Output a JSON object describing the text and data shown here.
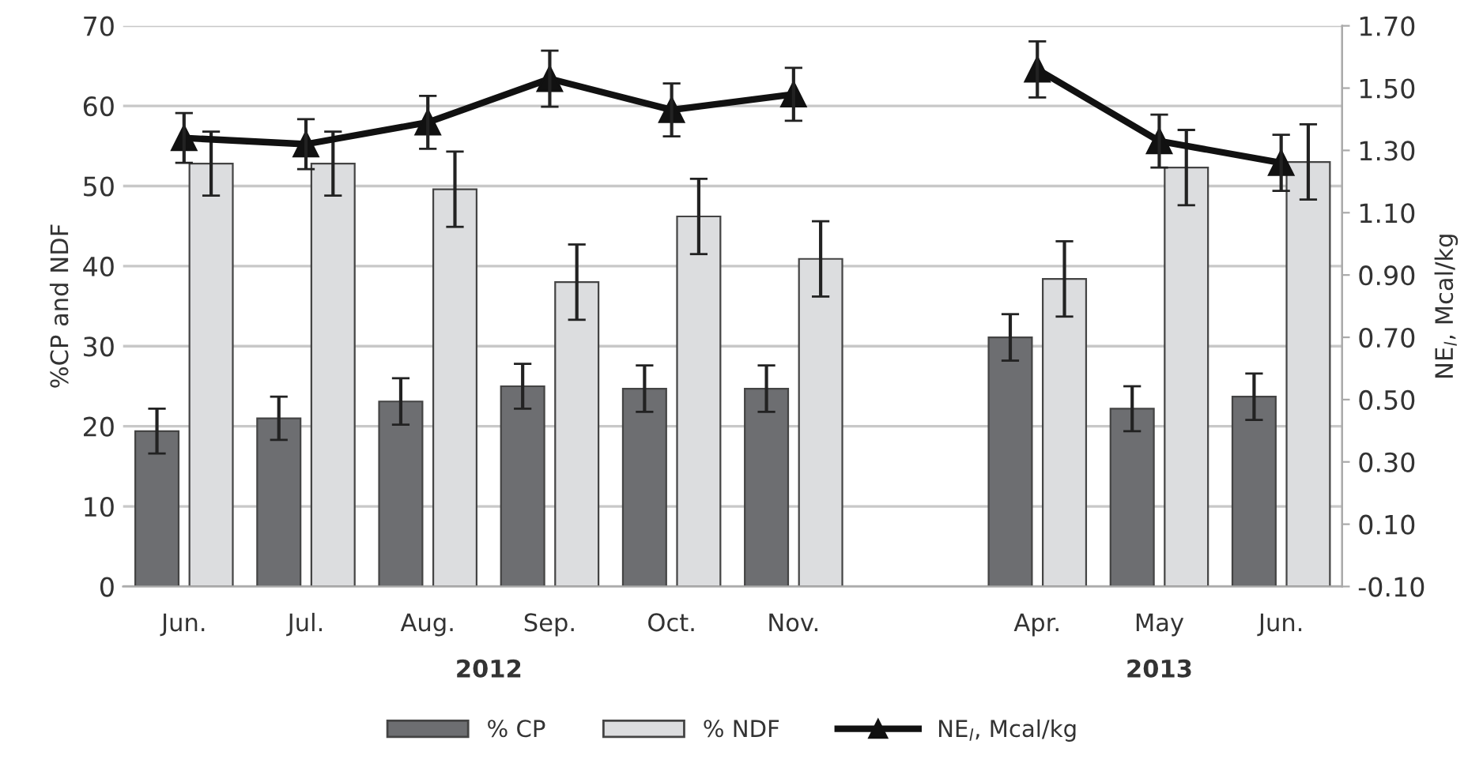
{
  "chart_data": {
    "type": "bar",
    "categories": [
      "Jun.",
      "Jul.",
      "Aug.",
      "Sep.",
      "Oct.",
      "Nov.",
      null,
      "Apr.",
      "May",
      "Jun."
    ],
    "series": [
      {
        "name": "% CP",
        "color": "#6d6e71",
        "values": [
          19.4,
          21.0,
          23.1,
          25.0,
          24.7,
          24.7,
          null,
          31.1,
          22.2,
          23.7
        ],
        "errors": [
          2.8,
          2.7,
          2.9,
          2.8,
          2.9,
          2.9,
          null,
          2.9,
          2.8,
          2.9
        ]
      },
      {
        "name": "% NDF",
        "color": "#dcdddf",
        "values": [
          52.8,
          52.8,
          49.6,
          38.0,
          46.2,
          40.9,
          null,
          38.4,
          52.3,
          53.0
        ],
        "errors": [
          4.0,
          4.0,
          4.7,
          4.7,
          4.7,
          4.7,
          null,
          4.7,
          4.7,
          4.7
        ]
      },
      {
        "name": "NE$_{l}$, Mcal/kg",
        "type": "line",
        "axis": "y2",
        "color": "#111111",
        "values": [
          1.34,
          1.32,
          1.39,
          1.53,
          1.43,
          1.48,
          null,
          1.56,
          1.33,
          1.26
        ],
        "errors": [
          0.08,
          0.08,
          0.085,
          0.09,
          0.085,
          0.085,
          null,
          0.09,
          0.085,
          0.09
        ]
      }
    ],
    "ylabel": "%CP and NDF",
    "y2label": "NE$_{l}$, Mcal/kg",
    "ylim": [
      0,
      70
    ],
    "yticks": [
      0,
      10,
      20,
      30,
      40,
      50,
      60,
      70
    ],
    "y2lim": [
      -0.1,
      1.7
    ],
    "y2ticks": [
      {
        "value": -0.1,
        "label": "-0.10"
      },
      {
        "value": 0.1,
        "label": "0.10"
      },
      {
        "value": 0.3,
        "label": "0.30"
      },
      {
        "value": 0.5,
        "label": "0.50"
      },
      {
        "value": 0.7,
        "label": "0.70"
      },
      {
        "value": 0.9,
        "label": "0.90"
      },
      {
        "value": 1.1,
        "label": "1.10"
      },
      {
        "value": 1.3,
        "label": "1.30"
      },
      {
        "value": 1.5,
        "label": "1.50"
      },
      {
        "value": 1.7,
        "label": "1.70"
      }
    ],
    "annotations": [
      "2012",
      "2013"
    ],
    "grid": "y",
    "legend": "bottom",
    "marker": "triangle",
    "line_style": "solid"
  }
}
